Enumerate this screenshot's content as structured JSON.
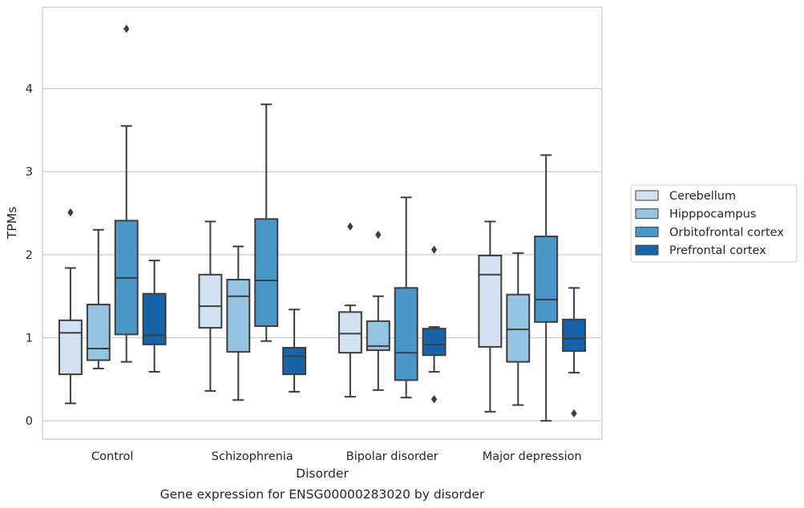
{
  "chart_data": {
    "type": "box",
    "title": "",
    "caption": "Gene expression for ENSG00000283020 by disorder",
    "xlabel": "Disorder",
    "ylabel": "TPMs",
    "ylim": [
      -0.22,
      4.98
    ],
    "yticks": [
      0,
      1,
      2,
      3,
      4
    ],
    "grid": "horizontal",
    "legend_position": "right",
    "categories": [
      "Control",
      "Schizophrenia",
      "Bipolar disorder",
      "Major depression"
    ],
    "series": [
      {
        "name": "Cerebellum",
        "color": "#d0e1f2",
        "boxes": [
          {
            "whislo": 0.21,
            "q1": 0.56,
            "med": 1.06,
            "q3": 1.21,
            "whishi": 1.84,
            "fliers": [
              2.51
            ]
          },
          {
            "whislo": 0.36,
            "q1": 1.12,
            "med": 1.38,
            "q3": 1.76,
            "whishi": 2.4,
            "fliers": []
          },
          {
            "whislo": 0.29,
            "q1": 0.82,
            "med": 1.05,
            "q3": 1.31,
            "whishi": 1.39,
            "fliers": [
              2.34
            ]
          },
          {
            "whislo": 0.11,
            "q1": 0.89,
            "med": 1.76,
            "q3": 1.99,
            "whishi": 2.4,
            "fliers": []
          }
        ]
      },
      {
        "name": "Hipppocampus",
        "color": "#94c4df",
        "boxes": [
          {
            "whislo": 0.63,
            "q1": 0.73,
            "med": 0.87,
            "q3": 1.4,
            "whishi": 2.3,
            "fliers": []
          },
          {
            "whislo": 0.25,
            "q1": 0.83,
            "med": 1.5,
            "q3": 1.7,
            "whishi": 2.1,
            "fliers": []
          },
          {
            "whislo": 0.37,
            "q1": 0.85,
            "med": 0.9,
            "q3": 1.2,
            "whishi": 1.5,
            "fliers": [
              2.24
            ]
          },
          {
            "whislo": 0.19,
            "q1": 0.71,
            "med": 1.1,
            "q3": 1.52,
            "whishi": 2.02,
            "fliers": []
          }
        ]
      },
      {
        "name": "Orbitofrontal cortex",
        "color": "#4a98c9",
        "boxes": [
          {
            "whislo": 0.71,
            "q1": 1.04,
            "med": 1.72,
            "q3": 2.41,
            "whishi": 3.55,
            "fliers": [
              4.72
            ]
          },
          {
            "whislo": 0.96,
            "q1": 1.14,
            "med": 1.69,
            "q3": 2.43,
            "whishi": 3.81,
            "fliers": []
          },
          {
            "whislo": 0.28,
            "q1": 0.49,
            "med": 0.82,
            "q3": 1.6,
            "whishi": 2.69,
            "fliers": []
          },
          {
            "whislo": 0.0,
            "q1": 1.19,
            "med": 1.46,
            "q3": 2.22,
            "whishi": 3.2,
            "fliers": []
          }
        ]
      },
      {
        "name": "Prefrontal cortex",
        "color": "#1764ab",
        "boxes": [
          {
            "whislo": 0.59,
            "q1": 0.92,
            "med": 1.03,
            "q3": 1.53,
            "whishi": 1.93,
            "fliers": []
          },
          {
            "whislo": 0.35,
            "q1": 0.56,
            "med": 0.78,
            "q3": 0.88,
            "whishi": 1.34,
            "fliers": []
          },
          {
            "whislo": 0.59,
            "q1": 0.79,
            "med": 0.92,
            "q3": 1.11,
            "whishi": 1.13,
            "fliers": [
              2.06,
              0.26
            ]
          },
          {
            "whislo": 0.58,
            "q1": 0.84,
            "med": 0.99,
            "q3": 1.22,
            "whishi": 1.6,
            "fliers": [
              0.09
            ]
          }
        ]
      }
    ]
  }
}
